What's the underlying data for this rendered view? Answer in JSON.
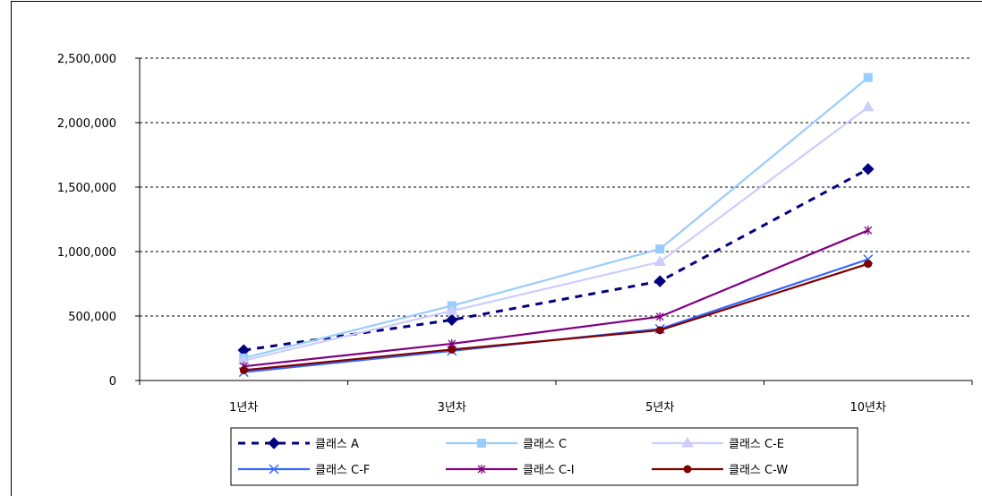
{
  "chart_data": {
    "type": "line",
    "title": "",
    "xlabel": "",
    "ylabel": "",
    "categories": [
      "1년차",
      "3년차",
      "5년차",
      "10년차"
    ],
    "ylim": [
      0,
      2500000
    ],
    "yticks": [
      "0",
      "500,000",
      "1,000,000",
      "1,500,000",
      "2,000,000",
      "2,500,000"
    ],
    "ytick_values": [
      0,
      500000,
      1000000,
      1500000,
      2000000,
      2500000
    ],
    "grid": "horizontal dashed",
    "legend_position": "bottom",
    "series": [
      {
        "name": "클래스 A",
        "values": [
          235000,
          470000,
          770000,
          1640000
        ],
        "color": "#000080",
        "marker": "diamond",
        "dashed": true
      },
      {
        "name": "클래스 C",
        "values": [
          175000,
          580000,
          1020000,
          2350000
        ],
        "color": "#99ccff",
        "marker": "square",
        "dashed": false
      },
      {
        "name": "클래스 C-E",
        "values": [
          155000,
          540000,
          920000,
          2120000
        ],
        "color": "#ccccff",
        "marker": "triangle",
        "dashed": false
      },
      {
        "name": "클래스 C-F",
        "values": [
          65000,
          230000,
          400000,
          940000
        ],
        "color": "#3366ff",
        "marker": "x",
        "dashed": false
      },
      {
        "name": "클래스 C-I",
        "values": [
          110000,
          285000,
          495000,
          1165000
        ],
        "color": "#800080",
        "marker": "star",
        "dashed": false
      },
      {
        "name": "클래스 C-W",
        "values": [
          80000,
          240000,
          390000,
          905000
        ],
        "color": "#800000",
        "marker": "dot",
        "dashed": false
      }
    ]
  }
}
